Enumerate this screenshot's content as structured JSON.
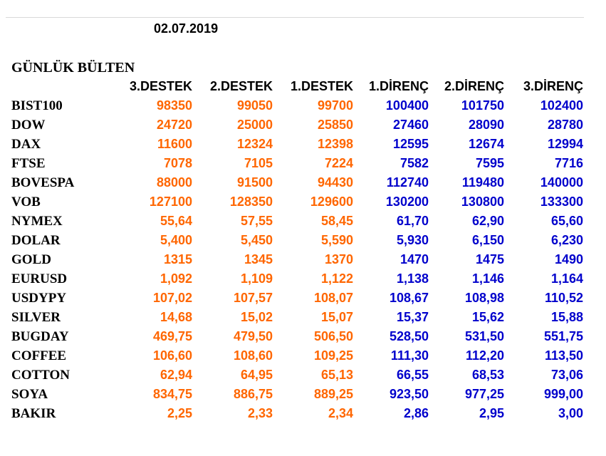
{
  "date": "02.07.2019",
  "title": "GÜNLÜK BÜLTEN",
  "colors": {
    "support": "#ff6600",
    "resistance": "#0000cc"
  },
  "columns": [
    "3.DESTEK",
    "2.DESTEK",
    "1.DESTEK",
    "1.DİRENÇ",
    "2.DİRENÇ",
    "3.DİRENÇ"
  ],
  "rows": [
    {
      "name": "BIST100",
      "values": [
        "98350",
        "99050",
        "99700",
        "100400",
        "101750",
        "102400"
      ]
    },
    {
      "name": "DOW",
      "values": [
        "24720",
        "25000",
        "25850",
        "27460",
        "28090",
        "28780"
      ]
    },
    {
      "name": "DAX",
      "values": [
        "11600",
        "12324",
        "12398",
        "12595",
        "12674",
        "12994"
      ]
    },
    {
      "name": "FTSE",
      "values": [
        "7078",
        "7105",
        "7224",
        "7582",
        "7595",
        "7716"
      ]
    },
    {
      "name": "BOVESPA",
      "values": [
        "88000",
        "91500",
        "94430",
        "112740",
        "119480",
        "140000"
      ]
    },
    {
      "name": "VOB",
      "values": [
        "127100",
        "128350",
        "129600",
        "130200",
        "130800",
        "133300"
      ]
    },
    {
      "name": "NYMEX",
      "values": [
        "55,64",
        "57,55",
        "58,45",
        "61,70",
        "62,90",
        "65,60"
      ]
    },
    {
      "name": "DOLAR",
      "values": [
        "5,400",
        "5,450",
        "5,590",
        "5,930",
        "6,150",
        "6,230"
      ]
    },
    {
      "name": "GOLD",
      "values": [
        "1315",
        "1345",
        "1370",
        "1470",
        "1475",
        "1490"
      ]
    },
    {
      "name": "EURUSD",
      "values": [
        "1,092",
        "1,109",
        "1,122",
        "1,138",
        "1,146",
        "1,164"
      ]
    },
    {
      "name": "USDYPY",
      "values": [
        "107,02",
        "107,57",
        "108,07",
        "108,67",
        "108,98",
        "110,52"
      ]
    },
    {
      "name": "SILVER",
      "values": [
        "14,68",
        "15,02",
        "15,07",
        "15,37",
        "15,62",
        "15,88"
      ]
    },
    {
      "name": "BUGDAY",
      "values": [
        "469,75",
        "479,50",
        "506,50",
        "528,50",
        "531,50",
        "551,75"
      ]
    },
    {
      "name": "COFFEE",
      "values": [
        "106,60",
        "108,60",
        "109,25",
        "111,30",
        "112,20",
        "113,50"
      ]
    },
    {
      "name": "COTTON",
      "values": [
        "62,94",
        "64,95",
        "65,13",
        "66,55",
        "68,53",
        "73,06"
      ]
    },
    {
      "name": "SOYA",
      "values": [
        "834,75",
        "886,75",
        "889,25",
        "923,50",
        "977,25",
        "999,00"
      ]
    },
    {
      "name": "BAKIR",
      "values": [
        "2,25",
        "2,33",
        "2,34",
        "2,86",
        "2,95",
        "3,00"
      ]
    }
  ]
}
